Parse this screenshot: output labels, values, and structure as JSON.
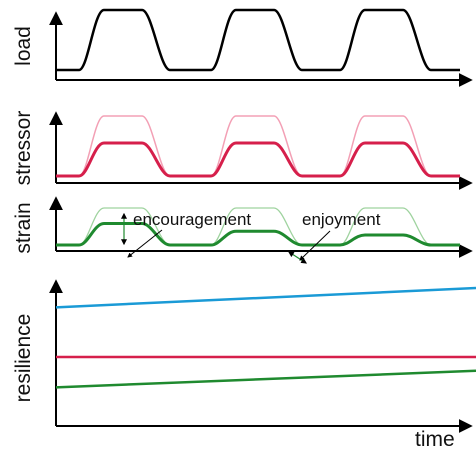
{
  "panels": {
    "load": {
      "label": "load",
      "color": "#000000"
    },
    "stressor": {
      "label": "stressor",
      "color_thin": "#f3a0b5",
      "color_thick": "#d61f4b",
      "thick_level": 0.55
    },
    "strain": {
      "label": "strain",
      "color_thin": "#9fd39f",
      "color_thick": "#1f8a2f",
      "thick_levels": [
        0.58,
        0.37,
        0.27
      ],
      "annotations": {
        "encouragement": "encouragement",
        "enjoyment": "enjoyment"
      }
    },
    "resilience": {
      "label": "resilience",
      "lines": [
        {
          "color": "#1a9ad6",
          "start": 0.86,
          "end": 1.0
        },
        {
          "color": "#d61f4b",
          "start": 0.5,
          "end": 0.5
        },
        {
          "color": "#1f8a2f",
          "start": 0.28,
          "end": 0.4
        }
      ]
    }
  },
  "axis": {
    "time_label": "time"
  }
}
